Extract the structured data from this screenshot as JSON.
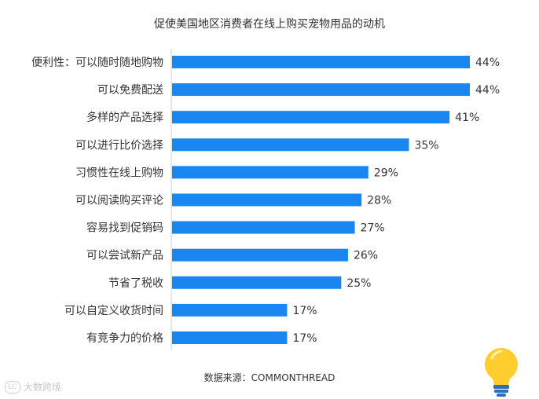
{
  "chart_data": {
    "type": "bar",
    "orientation": "horizontal",
    "title": "促使美国地区消费者在线上购买宠物用品的动机",
    "categories": [
      "便利性：可以随时随地购物",
      "可以免费配送",
      "多样的产品选择",
      "可以进行比价选择",
      "习惯性在线上购物",
      "可以阅读购买评论",
      "容易找到促销码",
      "可以尝试新产品",
      "节省了税收",
      "可以自定义收货时间",
      "有竞争力的价格"
    ],
    "values": [
      44,
      44,
      41,
      35,
      29,
      28,
      27,
      26,
      25,
      17,
      17
    ],
    "value_labels": [
      "44%",
      "44%",
      "41%",
      "35%",
      "29%",
      "28%",
      "27%",
      "26%",
      "25%",
      "17%",
      "17%"
    ],
    "unit": "%",
    "xlim": [
      0,
      50
    ],
    "bar_color": "#1a86f0",
    "grid": false
  },
  "source": "数据来源：COMMONTHREAD",
  "watermark": {
    "mark": "LC",
    "text": "大数跨境"
  },
  "colors": {
    "bulb": "#ffce2e",
    "bulb_base": "#2e6fb8"
  }
}
